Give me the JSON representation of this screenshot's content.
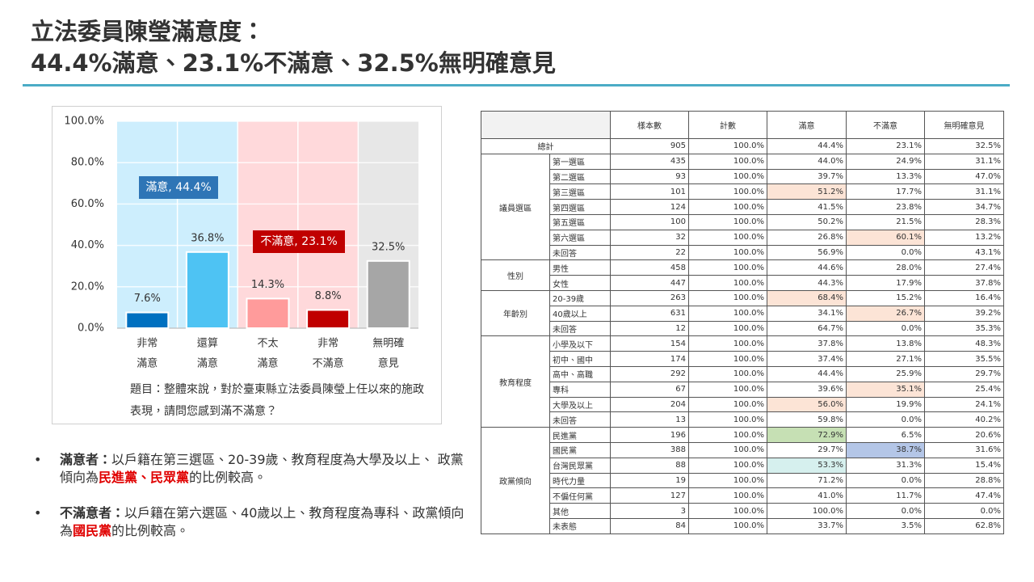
{
  "header": {
    "title_lines": [
      "立法委員陳瑩滿意度：",
      "44.4%滿意、23.1%不滿意、32.5%無明確意見"
    ]
  },
  "chart_data": {
    "type": "bar",
    "categories": [
      [
        "非常",
        "滿意"
      ],
      [
        "還算",
        "滿意"
      ],
      [
        "不太",
        "滿意"
      ],
      [
        "非常",
        "不滿意"
      ],
      [
        "無明確",
        "意見"
      ]
    ],
    "values": [
      7.6,
      36.8,
      14.3,
      8.8,
      32.5
    ],
    "value_labels": [
      "7.6%",
      "36.8%",
      "14.3%",
      "8.8%",
      "32.5%"
    ],
    "colors": [
      "#0070c0",
      "#4ec3f3",
      "#ff9b9b",
      "#c00000",
      "#a6a6a6"
    ],
    "band_colors": [
      "#cdeefd",
      "#cdeefd",
      "#ffd9db",
      "#ffd9db",
      "#e7e7e7"
    ],
    "ylim": [
      0,
      100
    ],
    "yticks": [
      {
        "value": 0,
        "label": "0.0%"
      },
      {
        "value": 20,
        "label": "20.0%"
      },
      {
        "value": 40,
        "label": "40.0%"
      },
      {
        "value": 60,
        "label": "60.0%"
      },
      {
        "value": 80,
        "label": "80.0%"
      },
      {
        "value": 100,
        "label": "100.0%"
      }
    ],
    "grid": true,
    "annotations": [
      {
        "text": "滿意, 44.4%",
        "color": "#2e75b6"
      },
      {
        "text": "不滿意, 23.1%",
        "color": "#c00000"
      }
    ],
    "note": "題目：整體來說，對於臺東縣立法委員陳瑩上任以來的施政表現，請問您感到滿不滿意？"
  },
  "bullets": [
    {
      "lead": "滿意者：",
      "parts": [
        {
          "text": "以戶籍在第三選區、20-39歲、教育程度為大學及以上、 政黨傾向為"
        },
        {
          "text": "民進黨、民眾黨",
          "emphasis": true
        },
        {
          "text": "的比例較高。"
        }
      ]
    },
    {
      "lead": "不滿意者：",
      "parts": [
        {
          "text": "以戶籍在第六選區、40歲以上、教育程度為專科、政黨傾向為"
        },
        {
          "text": "國民黨",
          "emphasis": true
        },
        {
          "text": "的比例較高。"
        }
      ]
    }
  ],
  "table": {
    "columns": [
      "樣本數",
      "計數",
      "滿意",
      "不滿意",
      "無明確意見"
    ],
    "total": {
      "label": "總計",
      "values": [
        "905",
        "100.0%",
        "44.4%",
        "23.1%",
        "32.5%"
      ]
    },
    "groups": [
      {
        "label": "議員選區",
        "rows": [
          {
            "label": "第一選區",
            "values": [
              "435",
              "100.0%",
              "44.0%",
              "24.9%",
              "31.1%"
            ]
          },
          {
            "label": "第二選區",
            "values": [
              "93",
              "100.0%",
              "39.7%",
              "13.3%",
              "47.0%"
            ]
          },
          {
            "label": "第三選區",
            "values": [
              "101",
              "100.0%",
              "51.2%",
              "17.7%",
              "31.1%"
            ],
            "highlight": {
              "column": 2,
              "color": "#fce4d6"
            }
          },
          {
            "label": "第四選區",
            "values": [
              "124",
              "100.0%",
              "41.5%",
              "23.8%",
              "34.7%"
            ]
          },
          {
            "label": "第五選區",
            "values": [
              "100",
              "100.0%",
              "50.2%",
              "21.5%",
              "28.3%"
            ]
          },
          {
            "label": "第六選區",
            "values": [
              "32",
              "100.0%",
              "26.8%",
              "60.1%",
              "13.2%"
            ],
            "highlight": {
              "column": 3,
              "color": "#fce4d6"
            }
          },
          {
            "label": "未回答",
            "values": [
              "22",
              "100.0%",
              "56.9%",
              "0.0%",
              "43.1%"
            ]
          }
        ]
      },
      {
        "label": "性別",
        "rows": [
          {
            "label": "男性",
            "values": [
              "458",
              "100.0%",
              "44.6%",
              "28.0%",
              "27.4%"
            ]
          },
          {
            "label": "女性",
            "values": [
              "447",
              "100.0%",
              "44.3%",
              "17.9%",
              "37.8%"
            ]
          }
        ]
      },
      {
        "label": "年齡別",
        "rows": [
          {
            "label": "20-39歲",
            "values": [
              "263",
              "100.0%",
              "68.4%",
              "15.2%",
              "16.4%"
            ],
            "highlight": {
              "column": 2,
              "color": "#fce4d6"
            }
          },
          {
            "label": "40歲以上",
            "values": [
              "631",
              "100.0%",
              "34.1%",
              "26.7%",
              "39.2%"
            ],
            "highlight": {
              "column": 3,
              "color": "#fce4d6"
            }
          },
          {
            "label": "未回答",
            "values": [
              "12",
              "100.0%",
              "64.7%",
              "0.0%",
              "35.3%"
            ]
          }
        ]
      },
      {
        "label": "教育程度",
        "rows": [
          {
            "label": "小學及以下",
            "values": [
              "154",
              "100.0%",
              "37.8%",
              "13.8%",
              "48.3%"
            ]
          },
          {
            "label": "初中、國中",
            "values": [
              "174",
              "100.0%",
              "37.4%",
              "27.1%",
              "35.5%"
            ]
          },
          {
            "label": "高中、高職",
            "values": [
              "292",
              "100.0%",
              "44.4%",
              "25.9%",
              "29.7%"
            ]
          },
          {
            "label": "專科",
            "values": [
              "67",
              "100.0%",
              "39.6%",
              "35.1%",
              "25.4%"
            ],
            "highlight": {
              "column": 3,
              "color": "#fce4d6"
            }
          },
          {
            "label": "大學及以上",
            "values": [
              "204",
              "100.0%",
              "56.0%",
              "19.9%",
              "24.1%"
            ],
            "highlight": {
              "column": 2,
              "color": "#fce4d6"
            }
          },
          {
            "label": "未回答",
            "values": [
              "13",
              "100.0%",
              "59.8%",
              "0.0%",
              "40.2%"
            ]
          }
        ]
      },
      {
        "label": "政黨傾向",
        "rows": [
          {
            "label": "民進黨",
            "values": [
              "196",
              "100.0%",
              "72.9%",
              "6.5%",
              "20.6%"
            ],
            "highlight": {
              "column": 2,
              "color": "#c6e0b4"
            }
          },
          {
            "label": "國民黨",
            "values": [
              "388",
              "100.0%",
              "29.7%",
              "38.7%",
              "31.6%"
            ],
            "highlight": {
              "column": 3,
              "color": "#b4c6e7"
            }
          },
          {
            "label": "台灣民眾黨",
            "values": [
              "88",
              "100.0%",
              "53.3%",
              "31.3%",
              "15.4%"
            ],
            "highlight": {
              "column": 2,
              "color": "#d6f0ee"
            }
          },
          {
            "label": "時代力量",
            "values": [
              "19",
              "100.0%",
              "71.2%",
              "0.0%",
              "28.8%"
            ]
          },
          {
            "label": "不偏任何黨",
            "values": [
              "127",
              "100.0%",
              "41.0%",
              "11.7%",
              "47.4%"
            ]
          },
          {
            "label": "其他",
            "values": [
              "3",
              "100.0%",
              "100.0%",
              "0.0%",
              "0.0%"
            ]
          },
          {
            "label": "未表態",
            "values": [
              "84",
              "100.0%",
              "33.7%",
              "3.5%",
              "62.8%"
            ]
          }
        ]
      }
    ]
  }
}
